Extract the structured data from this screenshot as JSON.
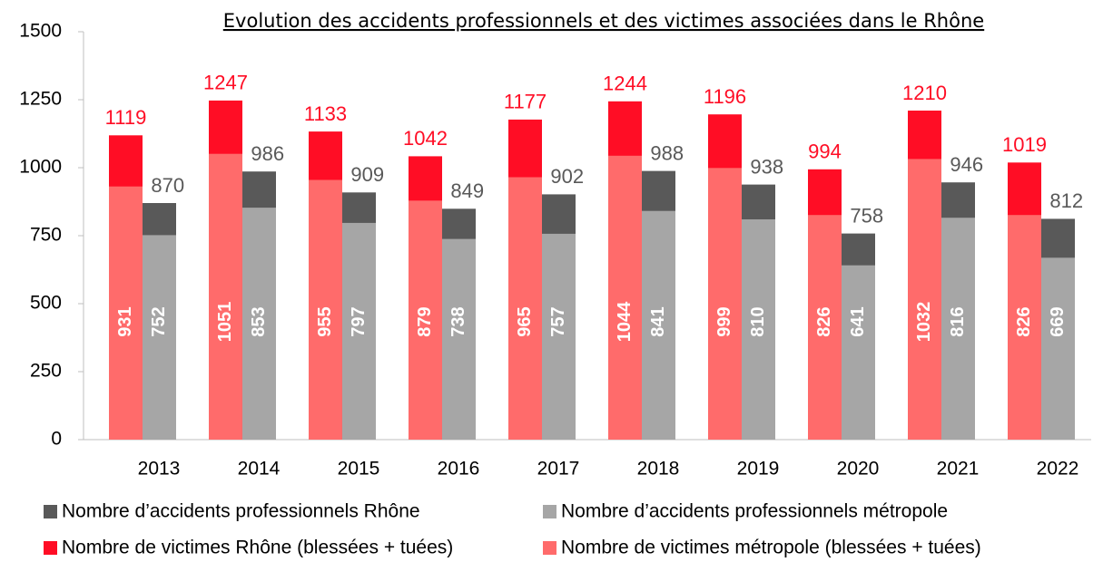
{
  "chart_data": {
    "type": "bar",
    "title": "Evolution des accidents professionnels et des victimes associées dans le Rhône",
    "categories": [
      "2013",
      "2014",
      "2015",
      "2016",
      "2017",
      "2018",
      "2019",
      "2020",
      "2021",
      "2022"
    ],
    "series": [
      {
        "name": "Nombre d’accidents professionnels Rhône",
        "color": "#595959",
        "values": [
          870,
          986,
          909,
          849,
          902,
          988,
          938,
          758,
          946,
          812
        ]
      },
      {
        "name": "Nombre d’accidents professionnels métropole",
        "color": "#a6a6a6",
        "values": [
          752,
          853,
          797,
          738,
          757,
          841,
          810,
          641,
          816,
          669
        ]
      },
      {
        "name": "Nombre de victimes Rhône (blessées + tuées)",
        "color": "#ff0d25",
        "values": [
          1119,
          1247,
          1133,
          1042,
          1177,
          1244,
          1196,
          994,
          1210,
          1019
        ]
      },
      {
        "name": "Nombre de victimes métropole (blessées + tuées)",
        "color": "#ff6b6b",
        "values": [
          931,
          1051,
          955,
          879,
          965,
          1044,
          999,
          826,
          1032,
          826
        ]
      }
    ],
    "ylim": [
      0,
      1500
    ],
    "yticks": [
      0,
      250,
      500,
      750,
      1000,
      1250,
      1500
    ]
  }
}
